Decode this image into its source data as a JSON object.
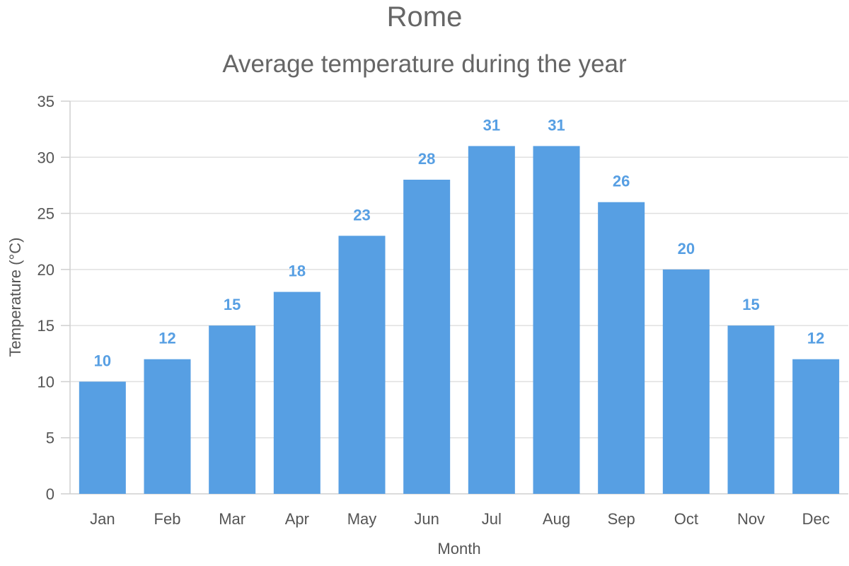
{
  "chart_data": {
    "type": "bar",
    "title": "Rome",
    "subtitle": "Average temperature during the year",
    "xlabel": "Month",
    "ylabel": "Temperature (°C)",
    "categories": [
      "Jan",
      "Feb",
      "Mar",
      "Apr",
      "May",
      "Jun",
      "Jul",
      "Aug",
      "Sep",
      "Oct",
      "Nov",
      "Dec"
    ],
    "series": [
      {
        "values": [
          10,
          12,
          15,
          18,
          23,
          28,
          31,
          31,
          26,
          20,
          15,
          12
        ],
        "color": "#579fe3"
      }
    ],
    "ylim": [
      0,
      35
    ],
    "yticks": [
      0,
      5,
      10,
      15,
      20,
      25,
      30,
      35
    ],
    "data_labels": true,
    "data_label_color": "#579fe3",
    "grid": true,
    "legend": "none"
  }
}
